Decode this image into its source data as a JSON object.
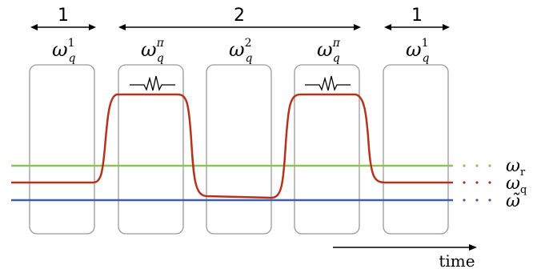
{
  "periods": [
    {
      "label": "1"
    },
    {
      "label": "2"
    },
    {
      "label": "1"
    }
  ],
  "frequency_labels": [
    {
      "base": "ω",
      "sub": "q",
      "sup": "1"
    },
    {
      "base": "ω",
      "sub": "q",
      "sup": "π"
    },
    {
      "base": "ω",
      "sub": "q",
      "sup": "2"
    },
    {
      "base": "ω",
      "sub": "q",
      "sup": "π"
    },
    {
      "base": "ω",
      "sub": "q",
      "sup": "1"
    }
  ],
  "legend": [
    {
      "base": "ω",
      "sub": "r",
      "color": "#8fc25a"
    },
    {
      "base": "ω",
      "sub": "q",
      "color": "#b5331c"
    },
    {
      "base": "ω̃",
      "sub": "",
      "color": "#3e5fa8"
    }
  ],
  "time_label": "time"
}
